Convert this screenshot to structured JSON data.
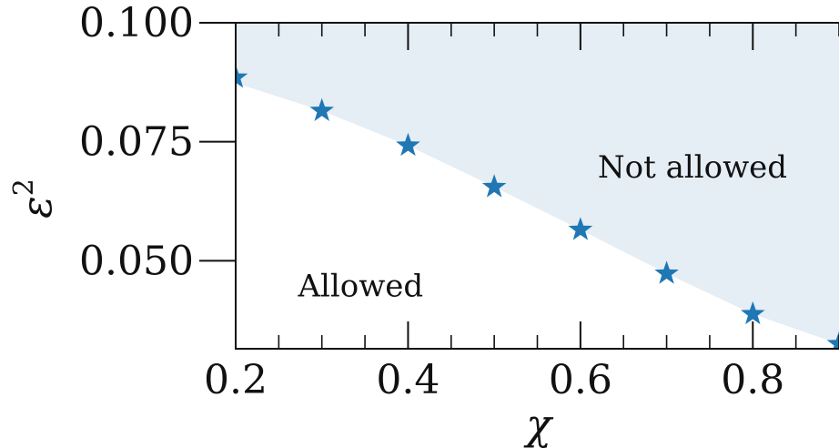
{
  "chart_data": {
    "type": "scatter",
    "xlabel": "χ",
    "ylabel": "ε",
    "ylabel_superscript": "2",
    "xlim": [
      0.2,
      0.9
    ],
    "ylim": [
      0.0315,
      0.1
    ],
    "x_ticks": [
      {
        "value": 0.2,
        "label": "0.2"
      },
      {
        "value": 0.4,
        "label": "0.4"
      },
      {
        "value": 0.6,
        "label": "0.6"
      },
      {
        "value": 0.8,
        "label": "0.8"
      }
    ],
    "y_ticks": [
      {
        "value": 0.05,
        "label": "0.050"
      },
      {
        "value": 0.075,
        "label": "0.075"
      },
      {
        "value": 0.1,
        "label": "0.100"
      }
    ],
    "x_minor_step": 0.05,
    "series": [
      {
        "marker": "star",
        "color": "#1f77b4",
        "x": [
          0.2,
          0.3,
          0.4,
          0.5,
          0.6,
          0.7,
          0.8,
          0.9
        ],
        "y": [
          0.0885,
          0.0815,
          0.0742,
          0.0655,
          0.0565,
          0.0473,
          0.0388,
          0.0325
        ]
      }
    ],
    "shaded_region": {
      "color": "#e5edf5",
      "side": "above"
    },
    "annotations": [
      {
        "text": "Not allowed",
        "x": 0.73,
        "y": 0.0675
      },
      {
        "text": "Allowed",
        "x": 0.345,
        "y": 0.0425
      }
    ],
    "grid": false
  }
}
